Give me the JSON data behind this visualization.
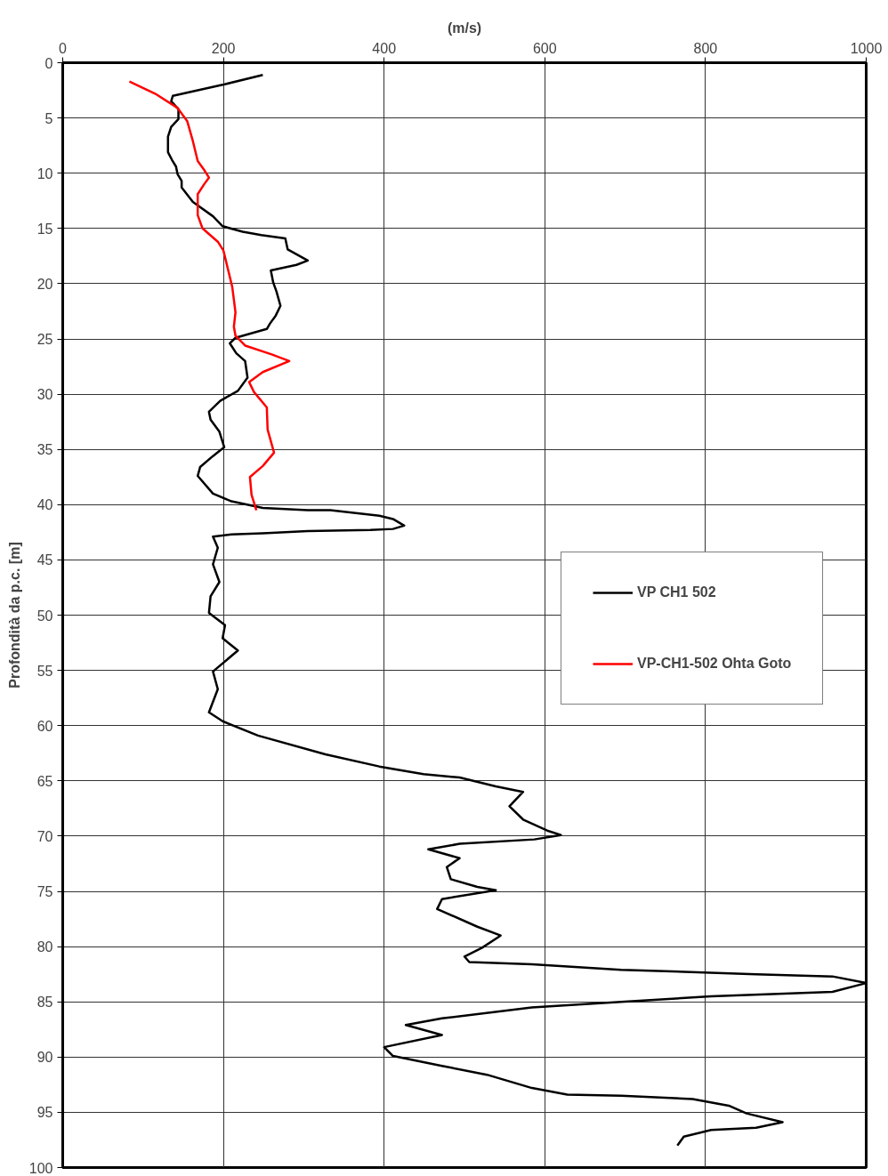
{
  "chart_data": {
    "type": "line",
    "xlabel": "(m/s)",
    "ylabel": "Profondità da p.c. [m]",
    "xlim": [
      0,
      1000
    ],
    "xticks": [
      0,
      200,
      400,
      600,
      800,
      1000
    ],
    "ylim": [
      100,
      0
    ],
    "yticks": [
      0,
      5,
      10,
      15,
      20,
      25,
      30,
      35,
      40,
      45,
      50,
      55,
      60,
      65,
      70,
      75,
      80,
      85,
      90,
      95,
      100
    ],
    "grid": true,
    "legend": "right",
    "marker": "none",
    "line_style": "solid",
    "series": [
      {
        "name": "VP CH1 502",
        "color": "#000000",
        "x": [
          249,
          199,
          137,
          135,
          144,
          144,
          135,
          131,
          131,
          136,
          141,
          143,
          148,
          148,
          162,
          187,
          199,
          224,
          247,
          277,
          280,
          305,
          291,
          259,
          262,
          266,
          271,
          265,
          258,
          254,
          215,
          208,
          216,
          227,
          230,
          218,
          196,
          182,
          184,
          195,
          201,
          187,
          171,
          168,
          187,
          210,
          249,
          305,
          333,
          394,
          411,
          425,
          411,
          383,
          305,
          249,
          210,
          187,
          193,
          187,
          195,
          184,
          182,
          202,
          199,
          218,
          187,
          193,
          182,
          199,
          243,
          327,
          394,
          449,
          494,
          539,
          573,
          556,
          573,
          603,
          620,
          587,
          494,
          455,
          494,
          478,
          483,
          516,
          539,
          472,
          466,
          516,
          545,
          522,
          500,
          506,
          584,
          695,
          863,
          958,
          1000,
          958,
          807,
          695,
          584,
          472,
          427,
          472,
          400,
          411,
          472,
          528,
          584,
          628,
          695,
          784,
          829,
          851,
          896,
          863,
          807,
          773,
          765
        ],
        "values": [
          1.1,
          2.0,
          3.0,
          3.5,
          4.2,
          5.1,
          5.8,
          6.7,
          8.1,
          8.8,
          9.4,
          10.1,
          10.7,
          11.3,
          12.6,
          13.9,
          14.8,
          15.3,
          15.6,
          15.9,
          16.9,
          17.9,
          18.3,
          18.8,
          19.9,
          20.7,
          22.0,
          22.9,
          23.6,
          24.1,
          24.9,
          25.4,
          26.3,
          27.0,
          28.5,
          29.7,
          30.6,
          31.6,
          32.3,
          33.4,
          34.8,
          35.6,
          36.6,
          37.4,
          39.0,
          39.7,
          40.3,
          40.5,
          40.5,
          41.0,
          41.3,
          41.9,
          42.2,
          42.3,
          42.4,
          42.6,
          42.7,
          42.9,
          43.9,
          45.4,
          47.0,
          48.3,
          49.8,
          50.9,
          52.1,
          53.2,
          55.1,
          56.7,
          58.8,
          59.6,
          60.9,
          62.6,
          63.7,
          64.4,
          64.7,
          65.5,
          66.0,
          67.3,
          68.5,
          69.5,
          69.9,
          70.3,
          70.7,
          71.2,
          72.0,
          72.8,
          73.9,
          74.6,
          74.9,
          75.7,
          76.6,
          78.2,
          79.0,
          80.1,
          80.9,
          81.4,
          81.6,
          82.1,
          82.5,
          82.7,
          83.3,
          84.1,
          84.5,
          85.0,
          85.5,
          86.5,
          87.1,
          88.0,
          89.1,
          89.9,
          90.8,
          91.6,
          92.8,
          93.4,
          93.5,
          93.8,
          94.4,
          95.1,
          95.9,
          96.4,
          96.6,
          97.2,
          98.0
        ]
      },
      {
        "name": "VP-CH1-502 Ohta Goto",
        "color": "#ff0000",
        "x": [
          83,
          115,
          143,
          155,
          162,
          168,
          176,
          182,
          176,
          168,
          168,
          174,
          193,
          200,
          206,
          211,
          215,
          213,
          215,
          227,
          260,
          282,
          249,
          232,
          238,
          254,
          255,
          263,
          249,
          233,
          235,
          241
        ],
        "values": [
          1.7,
          2.8,
          4.1,
          5.3,
          7.1,
          8.9,
          9.7,
          10.4,
          11.0,
          11.9,
          13.8,
          15.0,
          16.2,
          17.0,
          18.8,
          20.3,
          22.6,
          23.9,
          24.7,
          25.6,
          26.4,
          27.0,
          28.0,
          28.9,
          29.8,
          31.2,
          33.2,
          35.3,
          36.5,
          37.5,
          39.1,
          40.5
        ]
      }
    ]
  }
}
